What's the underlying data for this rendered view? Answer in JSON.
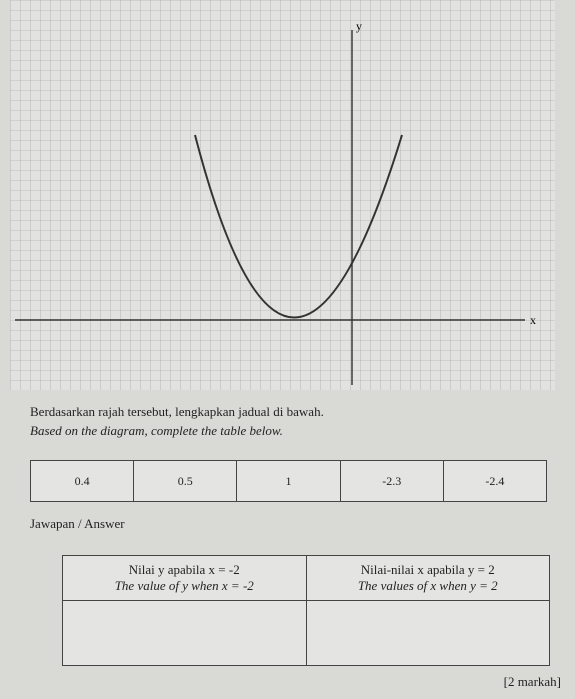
{
  "graph": {
    "x_axis_label": "x",
    "y_axis_label": "y"
  },
  "instruction": {
    "malay": "Berdasarkan rajah tersebut, lengkapkan jadual di bawah.",
    "english": "Based on the diagram, complete the table below."
  },
  "options": [
    "0.4",
    "0.5",
    "1",
    "-2.3",
    "-2.4"
  ],
  "answer_label": "Jawapan / Answer",
  "table": {
    "headers": [
      {
        "malay": "Nilai y apabila x = -2",
        "english": "The value of y when x = -2"
      },
      {
        "malay": "Nilai-nilai x apabila y = 2",
        "english": "The values of x when y = 2"
      }
    ]
  },
  "marks": "[2 markah]"
}
